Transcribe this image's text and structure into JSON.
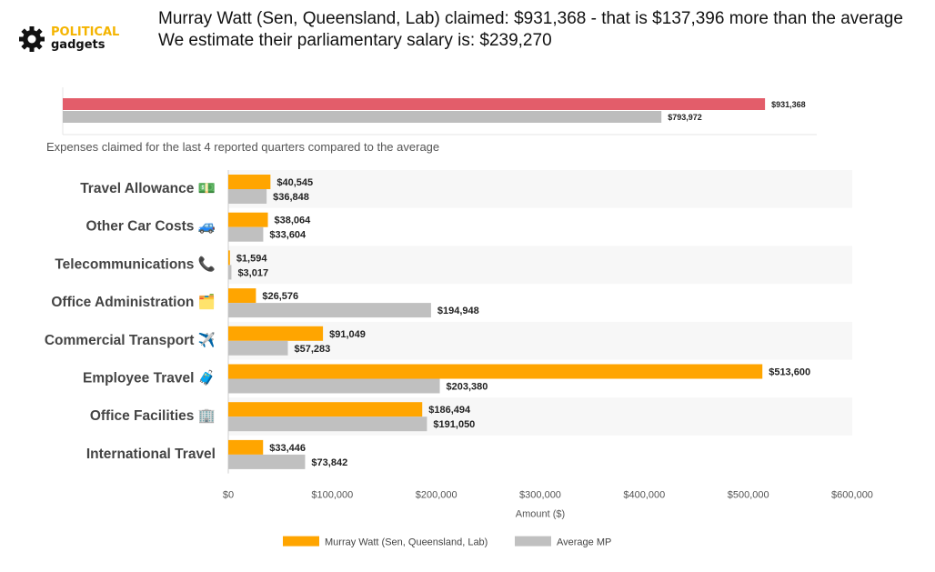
{
  "logo": {
    "line1": "POLITICAL",
    "line2": "gadgets"
  },
  "header": {
    "line1": "Murray Watt (Sen, Queensland, Lab) claimed: $931,368 - that is $137,396 more than the average",
    "line2": "We estimate their parliamentary salary is: $239,270"
  },
  "colors": {
    "mp_total": "#e35d6a",
    "avg_total": "#bdbdbd",
    "mp_bar": "#ffa500",
    "avg_bar": "#c0c0c0"
  },
  "chart_data": [
    {
      "type": "bar",
      "orientation": "horizontal",
      "series": [
        {
          "values": [
            931368
          ],
          "labels": [
            "$931,368"
          ]
        },
        {
          "values": [
            793972
          ],
          "labels": [
            "$793,972"
          ]
        }
      ],
      "xlim": [
        0,
        1000000
      ]
    },
    {
      "type": "bar",
      "orientation": "horizontal",
      "title": "Expenses claimed for the last 4 reported quarters compared to the average",
      "categories": [
        "Travel Allowance 💵",
        "Other Car Costs 🚙",
        "Telecommunications 📞",
        "Office Administration 🗂️",
        "Commercial Transport ✈️",
        "Employee Travel 🧳",
        "Office Facilities 🏢",
        "International Travel"
      ],
      "series": [
        {
          "name": "Murray Watt  (Sen, Queensland, Lab)",
          "values": [
            40545,
            38064,
            1594,
            26576,
            91049,
            513600,
            186494,
            33446
          ],
          "labels": [
            "$40,545",
            "$38,064",
            "$1,594",
            "$26,576",
            "$91,049",
            "$513,600",
            "$186,494",
            "$33,446"
          ]
        },
        {
          "name": "Average MP",
          "values": [
            36848,
            33604,
            3017,
            194948,
            57283,
            203380,
            191050,
            73842
          ],
          "labels": [
            "$36,848",
            "$33,604",
            "$3,017",
            "$194,948",
            "$57,283",
            "$203,380",
            "$191,050",
            "$73,842"
          ]
        }
      ],
      "xticks": [
        "$0",
        "$100,000",
        "$200,000",
        "$300,000",
        "$400,000",
        "$500,000",
        "$600,000"
      ],
      "xlabel": "Amount ($)",
      "xlim": [
        0,
        600000
      ],
      "legend": "bottom"
    }
  ]
}
